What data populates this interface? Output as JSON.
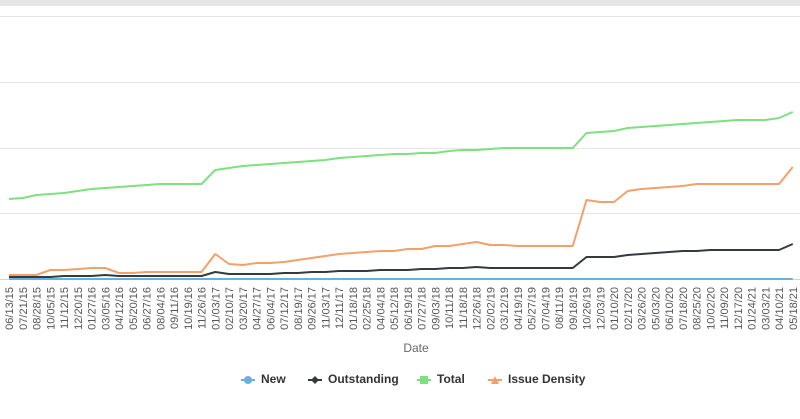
{
  "chart_data": {
    "type": "line",
    "x_label": "Date",
    "categories": [
      "06/13/15",
      "07/21/15",
      "08/28/15",
      "10/05/15",
      "11/12/15",
      "12/20/15",
      "01/27/16",
      "03/05/16",
      "04/12/16",
      "05/20/16",
      "06/27/16",
      "08/04/16",
      "09/11/16",
      "10/19/16",
      "11/26/16",
      "01/03/17",
      "02/10/17",
      "03/20/17",
      "04/27/17",
      "06/04/17",
      "07/12/17",
      "08/19/17",
      "09/26/17",
      "11/03/17",
      "12/11/17",
      "01/18/18",
      "02/25/18",
      "04/04/18",
      "05/12/18",
      "06/19/18",
      "07/27/18",
      "09/03/18",
      "10/11/18",
      "11/18/18",
      "12/26/18",
      "02/02/19",
      "03/12/19",
      "04/19/19",
      "05/27/19",
      "07/04/19",
      "08/11/19",
      "09/18/19",
      "10/26/19",
      "12/03/19",
      "01/10/20",
      "02/17/20",
      "03/26/20",
      "05/03/20",
      "06/10/20",
      "07/18/20",
      "08/25/20",
      "10/02/20",
      "11/09/20",
      "12/17/20",
      "01/24/21",
      "03/03/21",
      "04/10/21",
      "05/18/21"
    ],
    "ylim": [
      0,
      263
    ],
    "series": [
      {
        "name": "New",
        "color": "#6ab0de",
        "values": [
          0,
          0,
          0,
          0,
          0,
          0,
          0,
          0,
          0,
          0,
          0,
          0,
          0,
          0,
          0,
          0,
          0,
          0,
          0,
          0,
          0,
          0,
          0,
          0,
          0,
          0,
          0,
          0,
          0,
          0,
          0,
          0,
          0,
          0,
          0,
          0,
          0,
          0,
          0,
          0,
          0,
          0,
          0,
          0,
          0,
          0,
          0,
          0,
          0,
          0,
          0,
          0,
          0,
          0,
          0,
          0,
          0,
          0
        ]
      },
      {
        "name": "Outstanding",
        "color": "#343a40",
        "values": [
          2,
          2,
          2,
          2,
          3,
          3,
          3,
          4,
          3,
          3,
          3,
          3,
          3,
          3,
          3,
          7,
          5,
          5,
          5,
          5,
          6,
          6,
          7,
          7,
          8,
          8,
          8,
          9,
          9,
          9,
          10,
          10,
          11,
          11,
          12,
          11,
          11,
          11,
          11,
          11,
          11,
          11,
          22,
          22,
          22,
          24,
          25,
          26,
          27,
          28,
          28,
          29,
          29,
          29,
          29,
          29,
          29,
          35
        ]
      },
      {
        "name": "Total",
        "color": "#7ee07e",
        "values": [
          80,
          81,
          84,
          85,
          86,
          88,
          90,
          91,
          92,
          93,
          94,
          95,
          95,
          95,
          95,
          109,
          111,
          113,
          114,
          115,
          116,
          117,
          118,
          119,
          121,
          122,
          123,
          124,
          125,
          125,
          126,
          126,
          128,
          129,
          129,
          130,
          131,
          131,
          131,
          131,
          131,
          131,
          146,
          147,
          148,
          151,
          152,
          153,
          154,
          155,
          156,
          157,
          158,
          159,
          159,
          159,
          161,
          167
        ]
      },
      {
        "name": "Issue Density",
        "color": "#f4a06a",
        "values": [
          4,
          4,
          4,
          9,
          9,
          10,
          11,
          11,
          6,
          6,
          7,
          7,
          7,
          7,
          7,
          25,
          15,
          14,
          16,
          16,
          17,
          19,
          21,
          23,
          25,
          26,
          27,
          28,
          28,
          30,
          30,
          33,
          33,
          35,
          37,
          34,
          34,
          33,
          33,
          33,
          33,
          33,
          79,
          77,
          77,
          88,
          90,
          91,
          92,
          93,
          95,
          95,
          95,
          95,
          95,
          95,
          95,
          112
        ]
      }
    ]
  }
}
